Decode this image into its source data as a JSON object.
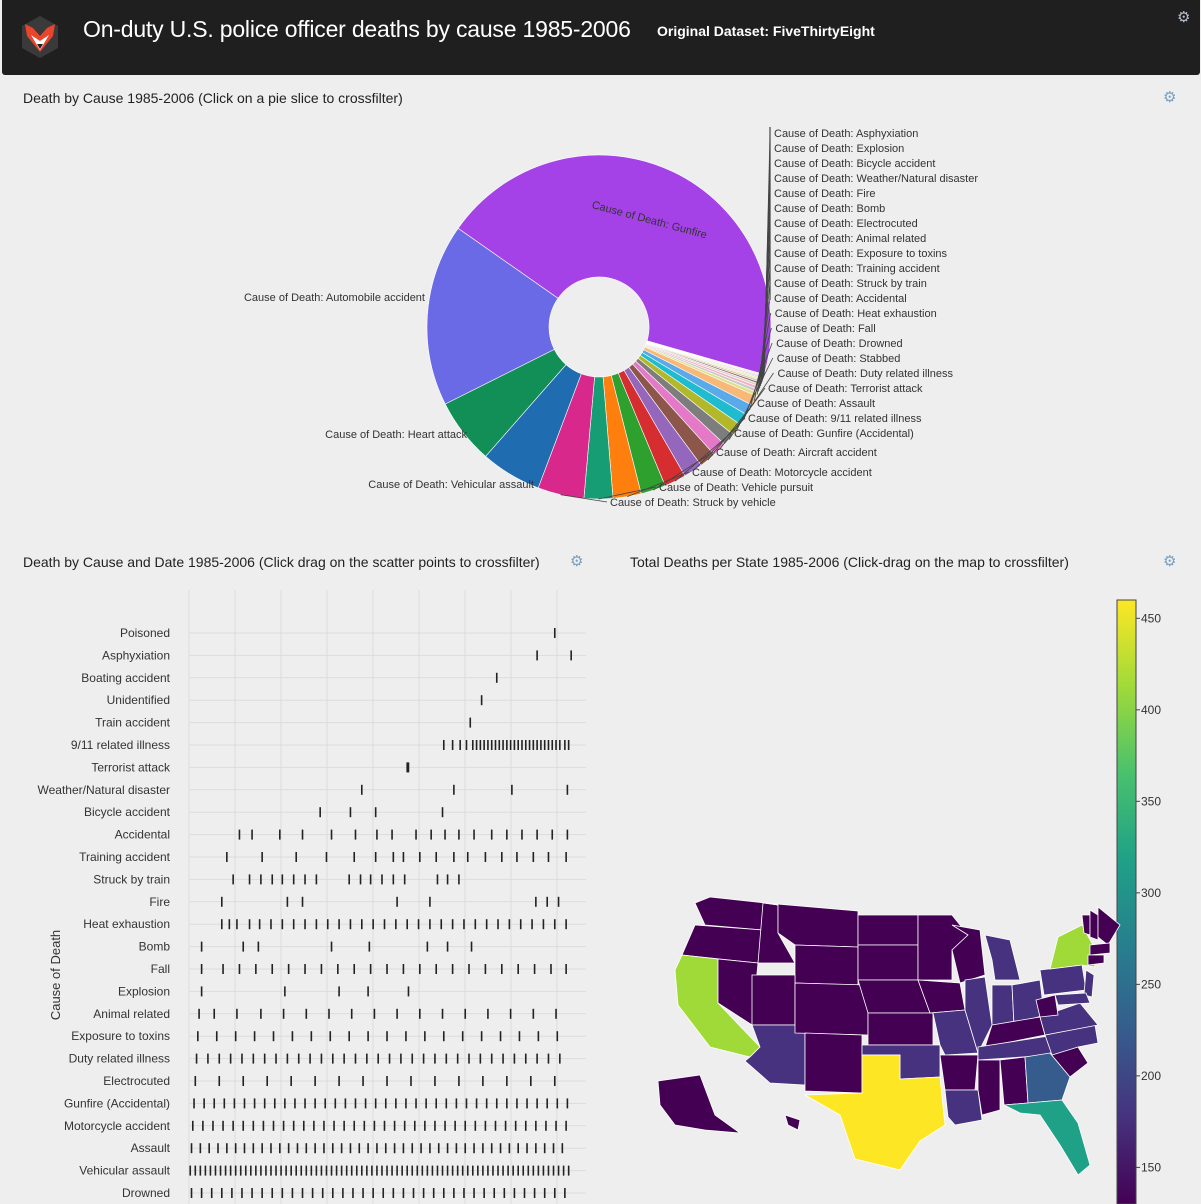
{
  "header": {
    "title": "On-duty U.S. police officer deaths by cause 1985-2006",
    "subtitle": "Original Dataset: FiveThirtyEight"
  },
  "panels": {
    "pie_title": "Death by Cause 1985-2006 (Click on a pie slice to crossfilter)",
    "scatter_title": "Death by Cause and Date 1985-2006 (Click drag on the scatter points to crossfilter)",
    "map_title": "Total Deaths per State 1985-2006 (Click-drag on the map to crossfilter)"
  },
  "colors": {
    "header_bg": "#1f1f1f",
    "page_bg": "#eeeeee",
    "gear": "#7aa0c0"
  },
  "icons": {
    "settings": "gear-icon",
    "logo": "fox-logo-icon"
  },
  "chart_data": [
    {
      "type": "pie",
      "hole": true,
      "slices": [
        {
          "label": "Cause of Death: Gunfire",
          "value": 1490,
          "color": "#a442e8"
        },
        {
          "label": "Cause of Death: Asphyxiation",
          "value": 2,
          "color": "#c7e3c5"
        },
        {
          "label": "Cause of Death: Explosion",
          "value": 3,
          "color": "#e8b89f"
        },
        {
          "label": "Cause of Death: Bicycle accident",
          "value": 3,
          "color": "#b7c6e6"
        },
        {
          "label": "Cause of Death: Weather/Natural disaster",
          "value": 4,
          "color": "#e2b5d4"
        },
        {
          "label": "Cause of Death: Fire",
          "value": 4,
          "color": "#cfe0b3"
        },
        {
          "label": "Cause of Death: Bomb",
          "value": 5,
          "color": "#f2dea8"
        },
        {
          "label": "Cause of Death: Electrocuted",
          "value": 6,
          "color": "#ccc4b0"
        },
        {
          "label": "Cause of Death: Animal related",
          "value": 6,
          "color": "#8e6c5c"
        },
        {
          "label": "Cause of Death: Exposure to toxins",
          "value": 8,
          "color": "#d9d2cf"
        },
        {
          "label": "Cause of Death: Training accident",
          "value": 9,
          "color": "#f5b0c4"
        },
        {
          "label": "Cause of Death: Struck by train",
          "value": 10,
          "color": "#c9c9c9"
        },
        {
          "label": "Cause of Death: Accidental",
          "value": 11,
          "color": "#dfe08e"
        },
        {
          "label": "Cause of Death: Heat exhaustion",
          "value": 31,
          "color": "#f8b878"
        },
        {
          "label": "Cause of Death: Fall",
          "value": 34,
          "color": "#5aa9e8"
        },
        {
          "label": "Cause of Death: Drowned",
          "value": 36,
          "color": "#1fbcd0"
        },
        {
          "label": "Cause of Death: Stabbed",
          "value": 38,
          "color": "#b2b82a"
        },
        {
          "label": "Cause of Death: Duty related illness",
          "value": 40,
          "color": "#7d7d7d"
        },
        {
          "label": "Cause of Death: Terrorist attack",
          "value": 45,
          "color": "#e47ac7"
        },
        {
          "label": "Cause of Death: Assault",
          "value": 52,
          "color": "#8d564a"
        },
        {
          "label": "Cause of Death: 9/11 related illness",
          "value": 60,
          "color": "#9467bd"
        },
        {
          "label": "Cause of Death: Gunfire (Accidental)",
          "value": 68,
          "color": "#d62d30"
        },
        {
          "label": "Cause of Death: Aircraft accident",
          "value": 78,
          "color": "#2da02d"
        },
        {
          "label": "Cause of Death: Motorcycle accident",
          "value": 88,
          "color": "#ff7f0e"
        },
        {
          "label": "Cause of Death: Vehicle pursuit",
          "value": 90,
          "color": "#169d73"
        },
        {
          "label": "Cause of Death: Struck by vehicle",
          "value": 145,
          "color": "#d8288c"
        },
        {
          "label": "Cause of Death: Vehicular assault",
          "value": 190,
          "color": "#1f6db0"
        },
        {
          "label": "Cause of Death: Heart attack",
          "value": 205,
          "color": "#128f57"
        },
        {
          "label": "Cause of Death: Automobile accident",
          "value": 570,
          "color": "#6a6ae6"
        }
      ]
    },
    {
      "type": "scatter",
      "ylabel": "Cause of Death",
      "xlim": [
        1985,
        2006
      ],
      "grid": true,
      "categories": [
        "Poisoned",
        "Asphyxiation",
        "Boating accident",
        "Unidentified",
        "Train accident",
        "9/11 related illness",
        "Terrorist attack",
        "Weather/Natural disaster",
        "Bicycle accident",
        "Accidental",
        "Training accident",
        "Struck by train",
        "Fire",
        "Heat exhaustion",
        "Bomb",
        "Fall",
        "Explosion",
        "Animal related",
        "Exposure to toxins",
        "Duty related illness",
        "Electrocuted",
        "Gunfire (Accidental)",
        "Motorcycle accident",
        "Assault",
        "Vehicular assault",
        "Drowned"
      ],
      "points": {
        "Poisoned": [
          2005.0
        ],
        "Asphyxiation": [
          2003.6,
          2006.3
        ],
        "Boating accident": [
          2000.4
        ],
        "Unidentified": [
          1999.2
        ],
        "Train accident": [
          1998.3
        ],
        "9/11 related illness": [
          1996.2,
          1996.9,
          1997.5,
          1998.0,
          1998.5,
          1998.8,
          1999.1,
          1999.4,
          1999.7,
          2000.0,
          2000.3,
          2000.6,
          2000.9,
          2001.2,
          2001.5,
          2001.8,
          2002.1,
          2002.4,
          2002.7,
          2003.0,
          2003.3,
          2003.6,
          2003.9,
          2004.2,
          2004.5,
          2004.8,
          2005.1,
          2005.4,
          2005.8,
          2006.1
        ],
        "Terrorist attack": [
          1993.3,
          1993.4
        ],
        "Weather/Natural disaster": [
          1989.7,
          1997.0,
          2001.6,
          2006.0
        ],
        "Bicycle accident": [
          1986.4,
          1988.8,
          1990.8,
          1996.1
        ],
        "Accidental": [
          1980.0,
          1981.0,
          1983.2,
          1985.0,
          1987.3,
          1989.2,
          1990.9,
          1992.1,
          1994.0,
          1995.2,
          1996.3,
          1997.4,
          1998.6,
          2000.0,
          2001.2,
          2002.4,
          2003.6,
          2004.8,
          2006.0
        ],
        "Training accident": [
          1979.0,
          1981.8,
          1984.5,
          1986.9,
          1989.1,
          1990.8,
          1992.2,
          1993.0,
          1994.3,
          1995.6,
          1997.0,
          1998.1,
          1999.5,
          2000.8,
          2002.0,
          2003.3,
          2004.5,
          2005.9
        ],
        "Struck by train": [
          1979.5,
          1980.8,
          1981.7,
          1982.6,
          1983.4,
          1984.3,
          1985.2,
          1986.1,
          1988.7,
          1989.6,
          1990.4,
          1991.3,
          1992.2,
          1993.1,
          1995.7,
          1996.5,
          1997.4
        ],
        "Fire": [
          1978.6,
          1983.8,
          1985.0,
          1992.5,
          1995.1,
          2003.5,
          2004.4,
          2005.3
        ],
        "Heat exhaustion": [
          1978.6,
          1979.2,
          1979.8,
          1980.8,
          1981.6,
          1982.5,
          1983.4,
          1984.3,
          1985.2,
          1986.1,
          1987.0,
          1987.9,
          1988.8,
          1989.7,
          1990.6,
          1991.5,
          1992.4,
          1993.3,
          1994.2,
          1995.1,
          1996.0,
          1996.9,
          1997.8,
          1998.7,
          1999.6,
          2000.5,
          2001.4,
          2002.3,
          2003.2,
          2004.1,
          2005.0,
          2005.9
        ],
        "Bomb": [
          1977.0,
          1980.3,
          1981.5,
          1987.3,
          1990.3,
          1994.9,
          1996.5,
          1998.4
        ],
        "Fall": [
          1977.0,
          1978.7,
          1980.0,
          1981.3,
          1982.6,
          1983.9,
          1985.2,
          1986.5,
          1987.8,
          1989.1,
          1990.4,
          1991.7,
          1993.0,
          1994.3,
          1995.6,
          1996.9,
          1998.2,
          1999.5,
          2000.8,
          2002.1,
          2003.4,
          2004.7,
          2005.9
        ],
        "Explosion": [
          1977.0,
          1983.6,
          1987.9,
          1990.2,
          1993.4
        ],
        "Animal related": [
          1976.8,
          1978.0,
          1979.8,
          1981.7,
          1983.5,
          1985.3,
          1987.1,
          1988.9,
          1990.7,
          1992.5,
          1994.3,
          1996.1,
          1997.9,
          1999.7,
          2001.5,
          2003.3,
          2005.1
        ],
        "Exposure to toxins": [
          1976.7,
          1978.2,
          1979.7,
          1981.2,
          1982.7,
          1984.2,
          1985.7,
          1987.2,
          1988.7,
          1990.2,
          1991.7,
          1993.2,
          1994.7,
          1996.2,
          1997.7,
          1999.2,
          2000.7,
          2002.2,
          2003.7,
          2005.2
        ],
        "Duty related illness": [
          1976.6,
          1977.5,
          1978.4,
          1979.3,
          1980.2,
          1981.1,
          1982.0,
          1982.9,
          1983.8,
          1984.7,
          1985.6,
          1986.5,
          1987.4,
          1988.3,
          1989.2,
          1990.1,
          1991.0,
          1991.9,
          1992.8,
          1993.7,
          1994.6,
          1995.5,
          1996.4,
          1997.3,
          1998.2,
          1999.1,
          2000.0,
          2000.9,
          2001.8,
          2002.7,
          2003.6,
          2004.5,
          2005.4
        ],
        "Electrocuted": [
          1976.5,
          1978.4,
          1980.3,
          1982.2,
          1984.1,
          1986.0,
          1987.9,
          1989.8,
          1991.7,
          1993.6,
          1995.5,
          1997.4,
          1999.3,
          2001.2,
          2003.1,
          2005.0
        ],
        "Gunfire (Accidental)": [
          1976.4,
          1977.2,
          1978.0,
          1978.8,
          1979.6,
          1980.4,
          1981.2,
          1982.0,
          1982.8,
          1983.6,
          1984.4,
          1985.2,
          1986.0,
          1986.8,
          1987.6,
          1988.4,
          1989.2,
          1990.0,
          1990.8,
          1991.6,
          1992.4,
          1993.2,
          1994.0,
          1994.8,
          1995.6,
          1996.4,
          1997.2,
          1998.0,
          1998.8,
          1999.6,
          2000.4,
          2001.2,
          2002.0,
          2002.8,
          2003.6,
          2004.4,
          2005.2,
          2006.0
        ],
        "Motorcycle accident": [
          1976.3,
          1977.1,
          1977.9,
          1978.7,
          1979.5,
          1980.3,
          1981.1,
          1981.9,
          1982.7,
          1983.5,
          1984.3,
          1985.1,
          1985.9,
          1986.7,
          1987.5,
          1988.3,
          1989.1,
          1989.9,
          1990.7,
          1991.5,
          1992.3,
          1993.1,
          1993.9,
          1994.7,
          1995.5,
          1996.3,
          1997.1,
          1997.9,
          1998.7,
          1999.5,
          2000.3,
          2001.1,
          2001.9,
          2002.7,
          2003.5,
          2004.3,
          2005.1,
          2005.9
        ],
        "Assault": [
          1976.2,
          1976.9,
          1977.6,
          1978.3,
          1979.0,
          1979.7,
          1980.4,
          1981.1,
          1981.8,
          1982.5,
          1983.2,
          1983.9,
          1984.6,
          1985.3,
          1986.0,
          1986.7,
          1987.4,
          1988.1,
          1988.8,
          1989.5,
          1990.2,
          1990.9,
          1991.6,
          1992.3,
          1993.0,
          1993.7,
          1994.4,
          1995.1,
          1995.8,
          1996.5,
          1997.2,
          1997.9,
          1998.6,
          1999.3,
          2000.0,
          2000.7,
          2001.4,
          2002.1,
          2002.8,
          2003.5,
          2004.2,
          2004.9,
          2005.6
        ],
        "Vehicular assault": [
          1976.1,
          1976.5,
          1976.9,
          1977.3,
          1977.7,
          1978.1,
          1978.5,
          1978.9,
          1979.3,
          1979.7,
          1980.1,
          1980.5,
          1980.9,
          1981.3,
          1981.7,
          1982.1,
          1982.5,
          1982.9,
          1983.3,
          1983.7,
          1984.1,
          1984.5,
          1984.9,
          1985.3,
          1985.7,
          1986.1,
          1986.5,
          1986.9,
          1987.3,
          1987.7,
          1988.1,
          1988.5,
          1988.9,
          1989.3,
          1989.7,
          1990.1,
          1990.5,
          1990.9,
          1991.3,
          1991.7,
          1992.1,
          1992.5,
          1992.9,
          1993.3,
          1993.7,
          1994.1,
          1994.5,
          1994.9,
          1995.3,
          1995.7,
          1996.1,
          1996.5,
          1996.9,
          1997.3,
          1997.7,
          1998.1,
          1998.5,
          1998.9,
          1999.3,
          1999.7,
          2000.1,
          2000.5,
          2000.9,
          2001.3,
          2001.7,
          2002.1,
          2002.5,
          2002.9,
          2003.3,
          2003.7,
          2004.1,
          2004.5,
          2004.9,
          2005.3,
          2005.7,
          2006.1
        ],
        "Drowned": [
          1976.2,
          1977.0,
          1977.8,
          1978.6,
          1979.4,
          1980.2,
          1981.0,
          1981.8,
          1982.6,
          1983.4,
          1984.2,
          1985.0,
          1985.8,
          1986.6,
          1987.4,
          1988.2,
          1989.0,
          1989.8,
          1990.6,
          1991.4,
          1992.2,
          1993.0,
          1993.8,
          1994.6,
          1995.4,
          1996.2,
          1997.0,
          1997.8,
          1998.6,
          1999.4,
          2000.2,
          2001.0,
          2001.8,
          2002.6,
          2003.4,
          2004.2,
          2005.0,
          2005.8
        ]
      }
    },
    {
      "type": "heatmap",
      "subtype": "choropleth",
      "colorscale": "Viridis",
      "colorbar_ticks": [
        150,
        200,
        250,
        300,
        350,
        400,
        450
      ],
      "colorbar_range": [
        130,
        460
      ],
      "highlights": [
        {
          "state": "CA",
          "value": 430
        },
        {
          "state": "TX",
          "value": 450
        },
        {
          "state": "NY",
          "value": 400
        },
        {
          "state": "FL",
          "value": 330
        },
        {
          "state": "GA",
          "value": 230
        },
        {
          "state": "AZ",
          "value": 170
        }
      ]
    }
  ]
}
